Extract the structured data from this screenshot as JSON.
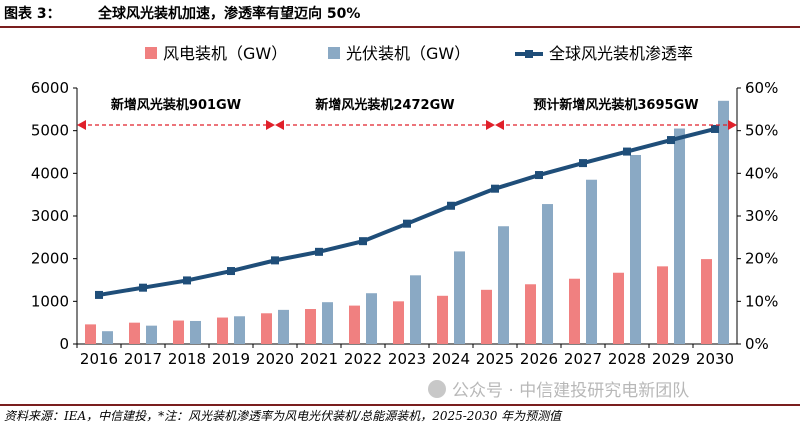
{
  "header": {
    "figure_label": "图表 3：",
    "figure_title": "全球风光装机加速，渗透率有望迈向 50%"
  },
  "footer": {
    "source": "资料来源：IEA，中信建投，*注：风光装机渗透率为风电光伏装机/总能源装机，2025-2030 年为预测值"
  },
  "watermark": {
    "text": "公众号 · 中信建投研究电新团队"
  },
  "colors": {
    "wind": "#f08080",
    "solar": "#8aa9c4",
    "penetration": "#1f4e79",
    "annotation": "#e0202a"
  },
  "chart_data": {
    "type": "bar",
    "categories": [
      "2016",
      "2017",
      "2018",
      "2019",
      "2020",
      "2021",
      "2022",
      "2023",
      "2024",
      "2025",
      "2026",
      "2027",
      "2028",
      "2029",
      "2030"
    ],
    "series": [
      {
        "name": "风电装机（GW）",
        "type": "bar",
        "axis": "left",
        "values": [
          460,
          500,
          550,
          620,
          720,
          820,
          900,
          1000,
          1130,
          1270,
          1400,
          1530,
          1670,
          1820,
          1990
        ]
      },
      {
        "name": "光伏装机（GW）",
        "type": "bar",
        "axis": "left",
        "values": [
          300,
          430,
          540,
          650,
          800,
          980,
          1190,
          1610,
          2170,
          2760,
          3280,
          3850,
          4430,
          5050,
          5700
        ]
      },
      {
        "name": "全球风光装机渗透率",
        "type": "line",
        "axis": "right",
        "values": [
          11.5,
          13.2,
          14.9,
          17.1,
          19.6,
          21.6,
          24.1,
          28.2,
          32.4,
          36.4,
          39.6,
          42.4,
          45.1,
          47.8,
          50.4
        ]
      }
    ],
    "y_left": {
      "min": 0,
      "max": 6000,
      "ticks": [
        0,
        1000,
        2000,
        3000,
        4000,
        5000,
        6000
      ]
    },
    "y_right": {
      "min": 0,
      "max": 60,
      "ticks": [
        "0%",
        "10%",
        "20%",
        "30%",
        "40%",
        "50%",
        "60%"
      ]
    },
    "legend_position": "top",
    "grid": false,
    "annotations": [
      {
        "text": "新增风光装机901GW",
        "from": "2016",
        "to": "2020"
      },
      {
        "text": "新增风光装机2472GW",
        "from": "2020",
        "to": "2025"
      },
      {
        "text": "预计新增风光装机3695GW",
        "from": "2025",
        "to": "2030"
      }
    ]
  }
}
